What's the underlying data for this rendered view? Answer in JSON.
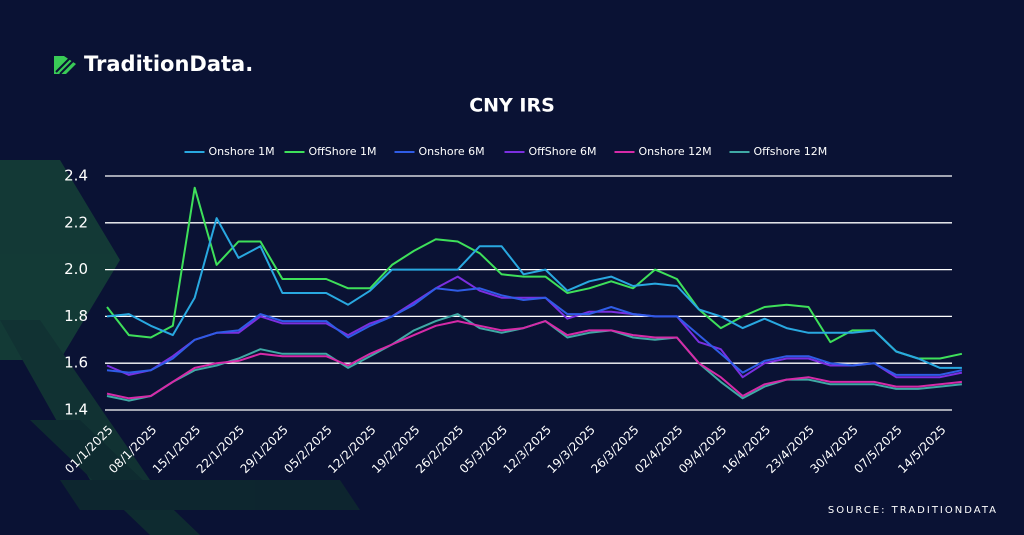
{
  "brand": "TraditionData.",
  "source": "SOURCE: TRADITIONDATA",
  "chart_data": {
    "type": "line",
    "title": "CNY IRS",
    "categories": [
      "01/1/2025",
      null,
      "08/1/2025",
      null,
      "15/1/2025",
      null,
      "22/1/2025",
      null,
      "29/1/2025",
      null,
      "05/2/2025",
      null,
      "12/2/2025",
      null,
      "19/2/2025",
      null,
      "26/2/2025",
      null,
      "05/3/2025",
      null,
      "12/3/2025",
      null,
      "19/3/2025",
      null,
      "26/3/2025",
      null,
      "02/4/2025",
      null,
      "09/4/2025",
      null,
      "16/4/2025",
      null,
      "23/4/2025",
      null,
      "30/4/2025",
      null,
      "07/5/2025",
      null,
      "14/5/2025",
      null
    ],
    "series": [
      {
        "name": "Onshore 1M",
        "color": "#29a8e0",
        "values": [
          1.8,
          1.81,
          1.76,
          1.72,
          1.88,
          2.22,
          2.05,
          2.1,
          1.9,
          1.9,
          1.9,
          1.85,
          1.91,
          2.0,
          2.0,
          2.0,
          2.0,
          2.1,
          2.1,
          1.98,
          2.0,
          1.91,
          1.95,
          1.97,
          1.93,
          1.94,
          1.93,
          1.83,
          1.8,
          1.75,
          1.79,
          1.75,
          1.73,
          1.73,
          1.73,
          1.74,
          1.65,
          1.62,
          1.58,
          1.58
        ]
      },
      {
        "name": "OffShore 1M",
        "color": "#3ee05a",
        "values": [
          1.84,
          1.72,
          1.71,
          1.76,
          2.35,
          2.02,
          2.12,
          2.12,
          1.96,
          1.96,
          1.96,
          1.92,
          1.92,
          2.02,
          2.08,
          2.13,
          2.12,
          2.07,
          1.98,
          1.97,
          1.97,
          1.9,
          1.92,
          1.95,
          1.92,
          2.0,
          1.96,
          1.83,
          1.75,
          1.8,
          1.84,
          1.85,
          1.84,
          1.69,
          1.74,
          1.74,
          1.65,
          1.62,
          1.62,
          1.64
        ]
      },
      {
        "name": "Onshore 6M",
        "color": "#2f5ce6",
        "values": [
          1.57,
          1.56,
          1.57,
          1.62,
          1.7,
          1.73,
          1.74,
          1.81,
          1.78,
          1.78,
          1.78,
          1.71,
          1.76,
          1.8,
          1.85,
          1.92,
          1.91,
          1.92,
          1.89,
          1.87,
          1.88,
          1.81,
          1.81,
          1.84,
          1.81,
          1.8,
          1.8,
          1.72,
          1.64,
          1.56,
          1.61,
          1.63,
          1.63,
          1.6,
          1.59,
          1.6,
          1.55,
          1.55,
          1.55,
          1.57
        ]
      },
      {
        "name": "OffShore 6M",
        "color": "#7b2fe0",
        "values": [
          1.59,
          1.55,
          1.57,
          1.63,
          1.7,
          1.73,
          1.73,
          1.8,
          1.77,
          1.77,
          1.77,
          1.72,
          1.77,
          1.8,
          1.86,
          1.92,
          1.97,
          1.91,
          1.88,
          1.88,
          1.88,
          1.79,
          1.82,
          1.82,
          1.81,
          1.8,
          1.8,
          1.69,
          1.66,
          1.54,
          1.6,
          1.62,
          1.62,
          1.59,
          1.59,
          1.6,
          1.54,
          1.54,
          1.54,
          1.56
        ]
      },
      {
        "name": "Onshore 12M",
        "color": "#d62aa8",
        "values": [
          1.47,
          1.45,
          1.46,
          1.52,
          1.58,
          1.6,
          1.61,
          1.64,
          1.63,
          1.63,
          1.63,
          1.59,
          1.64,
          1.68,
          1.72,
          1.76,
          1.78,
          1.76,
          1.74,
          1.75,
          1.78,
          1.72,
          1.74,
          1.74,
          1.72,
          1.71,
          1.71,
          1.6,
          1.54,
          1.46,
          1.51,
          1.53,
          1.54,
          1.52,
          1.52,
          1.52,
          1.5,
          1.5,
          1.51,
          1.52
        ]
      },
      {
        "name": "Offshore 12M",
        "color": "#3fa9a5",
        "values": [
          1.46,
          1.44,
          1.46,
          1.52,
          1.57,
          1.59,
          1.62,
          1.66,
          1.64,
          1.64,
          1.64,
          1.58,
          1.63,
          1.68,
          1.74,
          1.78,
          1.81,
          1.75,
          1.73,
          1.75,
          1.78,
          1.71,
          1.73,
          1.74,
          1.71,
          1.7,
          1.71,
          1.6,
          1.52,
          1.45,
          1.5,
          1.53,
          1.53,
          1.51,
          1.51,
          1.51,
          1.49,
          1.49,
          1.5,
          1.51
        ]
      }
    ],
    "ylim": [
      1.4,
      2.4
    ],
    "yticks": [
      1.4,
      1.6,
      1.8,
      {
        "value": 2,
        "label": "2.0"
      },
      2.2,
      2.4
    ],
    "grid": true,
    "legend": "top"
  }
}
